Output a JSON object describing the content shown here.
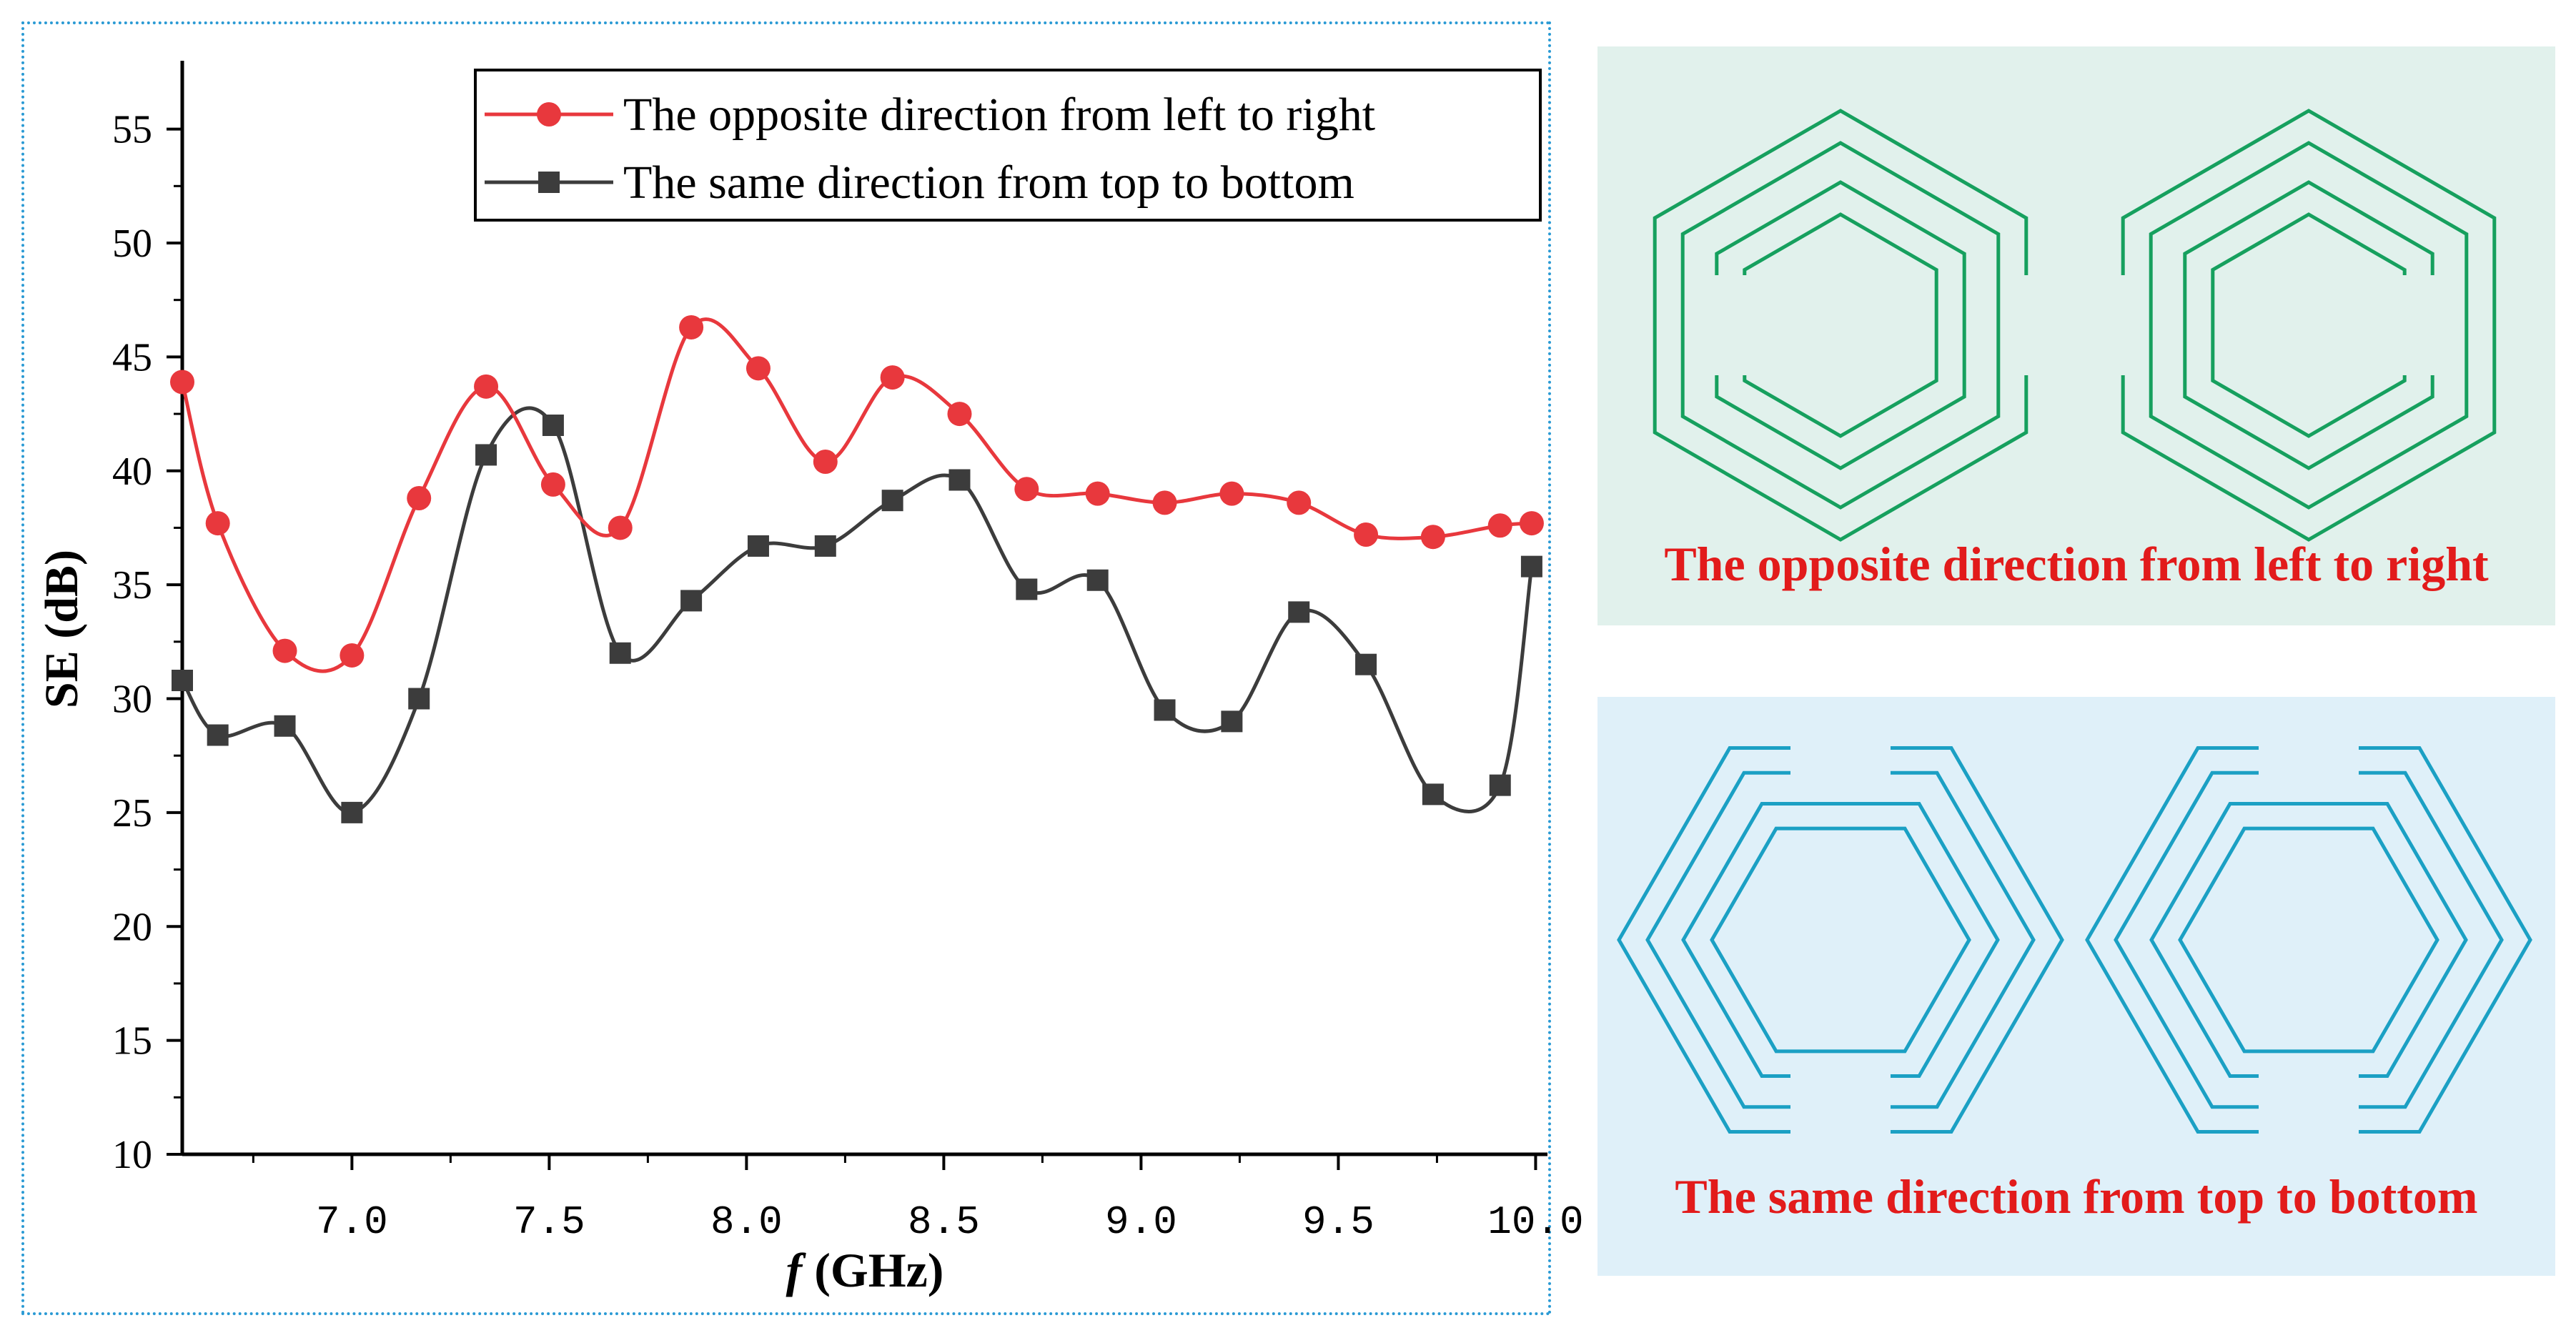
{
  "chart_data": {
    "type": "line",
    "xlabel_italic": "f",
    "xlabel_unit": "(GHz)",
    "ylabel": "SE (dB)",
    "xlim": [
      6.57,
      10.03
    ],
    "ylim": [
      10,
      58
    ],
    "xticks": [
      "7.0",
      "7.5",
      "8.0",
      "8.5",
      "9.0",
      "9.5",
      "10.0"
    ],
    "xtick_values": [
      7.0,
      7.5,
      8.0,
      8.5,
      9.0,
      9.5,
      10.0
    ],
    "yticks": [
      "10",
      "15",
      "20",
      "25",
      "30",
      "35",
      "40",
      "45",
      "50",
      "55"
    ],
    "ytick_values": [
      10,
      15,
      20,
      25,
      30,
      35,
      40,
      45,
      50,
      55
    ],
    "legend_position": "top-right",
    "series": [
      {
        "name": "The opposite direction from left to right",
        "color": "#e8383d",
        "marker": "circle",
        "x": [
          6.57,
          6.66,
          6.83,
          7.0,
          7.17,
          7.34,
          7.51,
          7.68,
          7.86,
          8.03,
          8.2,
          8.37,
          8.54,
          8.71,
          8.89,
          9.06,
          9.23,
          9.4,
          9.57,
          9.74,
          9.91,
          9.99
        ],
        "y": [
          43.9,
          37.7,
          32.1,
          31.9,
          38.8,
          43.7,
          39.4,
          37.5,
          46.3,
          44.5,
          40.4,
          44.1,
          42.5,
          39.2,
          39.0,
          38.6,
          39.0,
          38.6,
          37.2,
          37.1,
          37.6,
          37.7
        ]
      },
      {
        "name": "The same direction from top to bottom",
        "color": "#3c3c3c",
        "marker": "square",
        "x": [
          6.57,
          6.66,
          6.83,
          7.0,
          7.17,
          7.34,
          7.51,
          7.68,
          7.86,
          8.03,
          8.2,
          8.37,
          8.54,
          8.71,
          8.89,
          9.06,
          9.23,
          9.4,
          9.57,
          9.74,
          9.91,
          9.99
        ],
        "y": [
          30.8,
          28.4,
          28.8,
          25.0,
          30.0,
          40.7,
          42.0,
          32.0,
          34.3,
          36.7,
          36.7,
          38.7,
          39.6,
          34.8,
          35.2,
          29.5,
          29.0,
          33.8,
          31.5,
          25.8,
          26.2,
          35.8
        ]
      }
    ]
  },
  "panels": {
    "top": {
      "caption": "The opposite direction from left to right",
      "color": "#16a05e"
    },
    "bottom": {
      "caption": "The same direction from top to bottom",
      "color": "#1ba0c4"
    }
  }
}
